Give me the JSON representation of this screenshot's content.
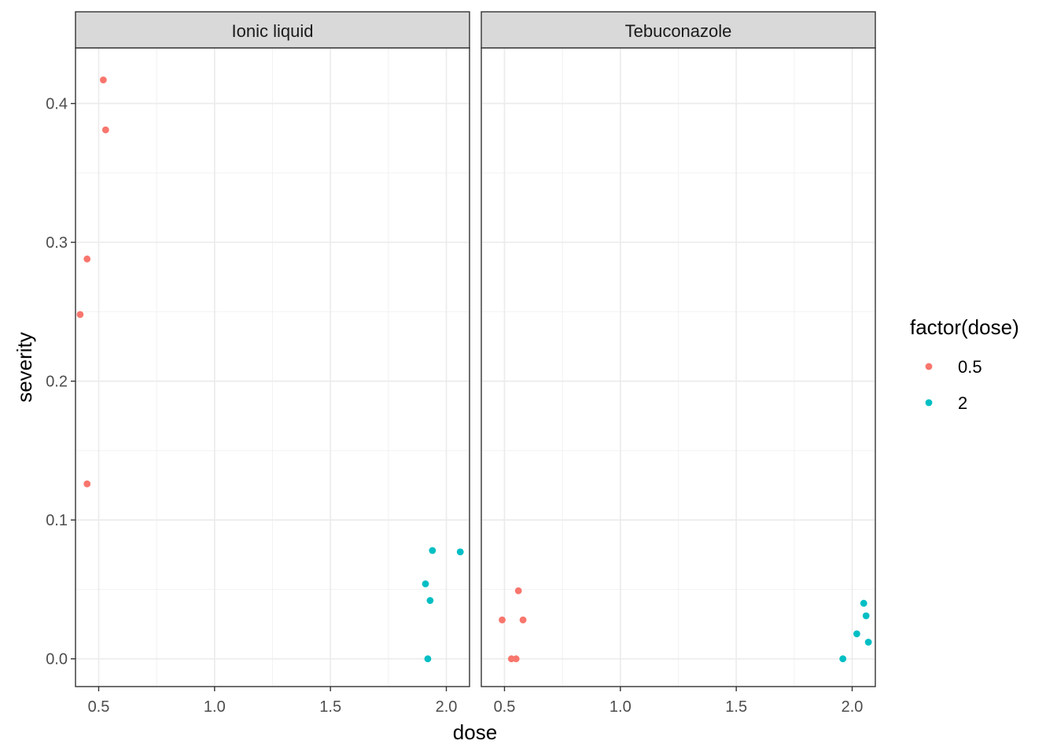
{
  "chart_data": {
    "type": "scatter",
    "facets": [
      {
        "label": "Ionic liquid",
        "series": [
          {
            "name": "0.5",
            "points": [
              [
                0.52,
                0.417
              ],
              [
                0.53,
                0.381
              ],
              [
                0.45,
                0.288
              ],
              [
                0.42,
                0.248
              ],
              [
                0.45,
                0.126
              ]
            ]
          },
          {
            "name": "2",
            "points": [
              [
                1.94,
                0.078
              ],
              [
                2.06,
                0.077
              ],
              [
                1.91,
                0.054
              ],
              [
                1.93,
                0.042
              ],
              [
                1.92,
                0.0
              ]
            ]
          }
        ]
      },
      {
        "label": "Tebuconazole",
        "series": [
          {
            "name": "0.5",
            "points": [
              [
                0.56,
                0.049
              ],
              [
                0.49,
                0.028
              ],
              [
                0.58,
                0.028
              ],
              [
                0.53,
                0.0
              ],
              [
                0.55,
                0.0
              ]
            ]
          },
          {
            "name": "2",
            "points": [
              [
                2.05,
                0.04
              ],
              [
                2.06,
                0.031
              ],
              [
                2.02,
                0.018
              ],
              [
                2.07,
                0.012
              ],
              [
                1.96,
                0.0
              ]
            ]
          }
        ]
      }
    ],
    "xlabel": "dose",
    "ylabel": "severity",
    "xlim": [
      0.4,
      2.1
    ],
    "ylim": [
      -0.02,
      0.44
    ],
    "xticks": [
      "0.5",
      "1.0",
      "1.5",
      "2.0"
    ],
    "yticks": [
      "0.0",
      "0.1",
      "0.2",
      "0.3",
      "0.4"
    ],
    "grid": true,
    "legend": {
      "title": "factor(dose)",
      "position": "right",
      "entries": [
        {
          "label": "0.5",
          "color": "#F8766D"
        },
        {
          "label": "2",
          "color": "#00BFC4"
        }
      ]
    }
  }
}
